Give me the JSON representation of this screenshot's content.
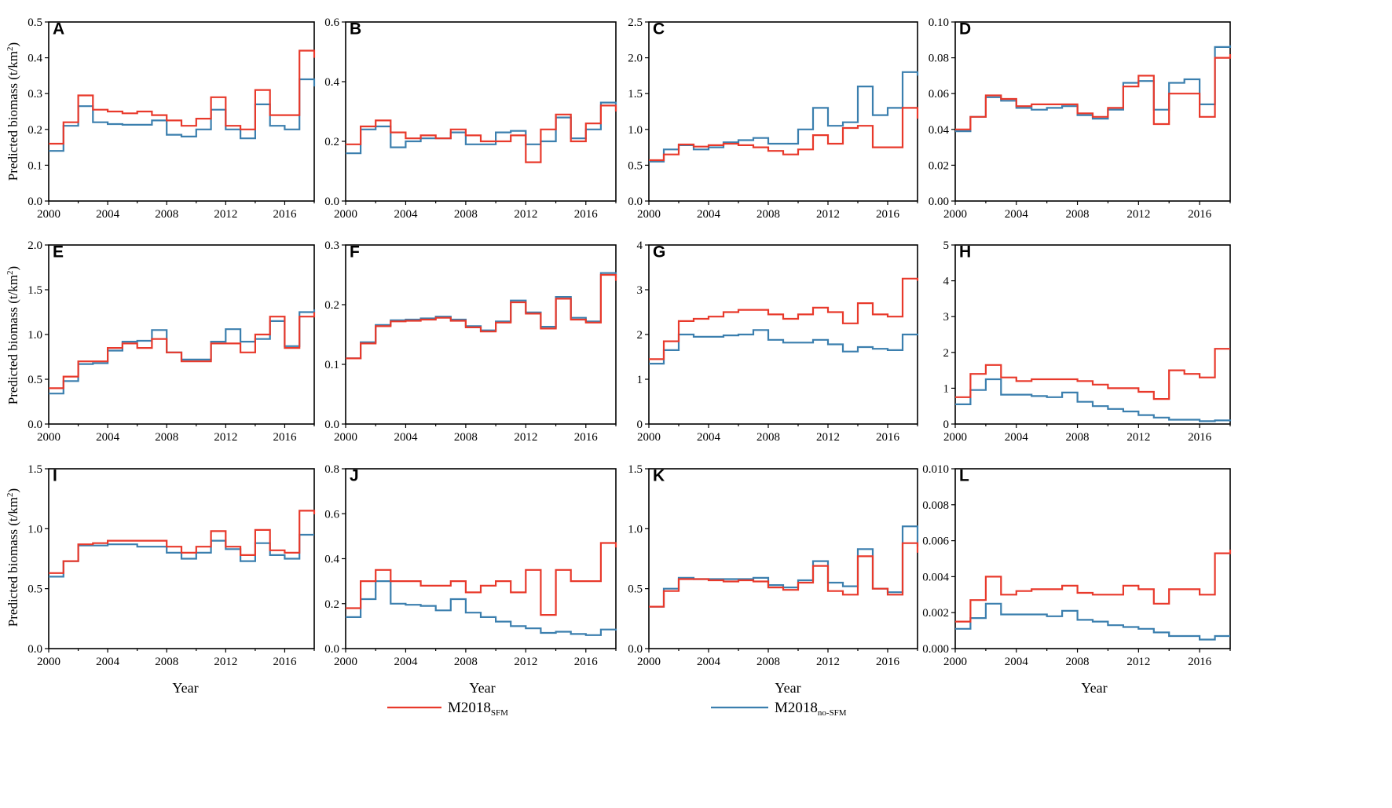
{
  "figure": {
    "ylabel": "Predicted biomass (t/km",
    "ylabel_sup": "2",
    "ylabel_close": ")",
    "xlabel": "Year",
    "legend": {
      "sfm_base": "M2018",
      "sfm_sub": "SFM",
      "nosfm_base": "M2018",
      "nosfm_sub": "no-SFM",
      "sfm_color": "#e8392b",
      "nosfm_color": "#3b7fae"
    }
  },
  "chart_data": [
    {
      "label": "A",
      "type": "line",
      "x": [
        2000,
        2001,
        2002,
        2003,
        2004,
        2005,
        2006,
        2007,
        2008,
        2009,
        2010,
        2011,
        2012,
        2013,
        2014,
        2015,
        2016,
        2017,
        2018
      ],
      "ylim": [
        0,
        0.5
      ],
      "yticks": [
        "0.0",
        "0.1",
        "0.2",
        "0.3",
        "0.4",
        "0.5"
      ],
      "xticks": [
        "2000",
        "2004",
        "2008",
        "2012",
        "2016"
      ],
      "series": [
        {
          "name": "M2018 SFM",
          "values": [
            0.16,
            0.22,
            0.295,
            0.255,
            0.25,
            0.245,
            0.25,
            0.24,
            0.225,
            0.21,
            0.23,
            0.29,
            0.21,
            0.2,
            0.31,
            0.24,
            0.24,
            0.42,
            0.4
          ]
        },
        {
          "name": "M2018 no-SFM",
          "values": [
            0.14,
            0.21,
            0.265,
            0.22,
            0.215,
            0.213,
            0.213,
            0.225,
            0.185,
            0.18,
            0.2,
            0.255,
            0.2,
            0.175,
            0.27,
            0.21,
            0.2,
            0.34,
            0.32
          ]
        }
      ]
    },
    {
      "label": "B",
      "type": "line",
      "x": [
        2000,
        2001,
        2002,
        2003,
        2004,
        2005,
        2006,
        2007,
        2008,
        2009,
        2010,
        2011,
        2012,
        2013,
        2014,
        2015,
        2016,
        2017,
        2018
      ],
      "ylim": [
        0,
        0.6
      ],
      "yticks": [
        "0.0",
        "0.2",
        "0.4",
        "0.6"
      ],
      "xticks": [
        "2000",
        "2004",
        "2008",
        "2012",
        "2016"
      ],
      "series": [
        {
          "name": "M2018 SFM",
          "values": [
            0.19,
            0.25,
            0.27,
            0.23,
            0.21,
            0.22,
            0.21,
            0.24,
            0.22,
            0.2,
            0.2,
            0.22,
            0.13,
            0.24,
            0.29,
            0.2,
            0.26,
            0.32,
            0.3
          ]
        },
        {
          "name": "M2018 no-SFM",
          "values": [
            0.16,
            0.24,
            0.25,
            0.18,
            0.2,
            0.21,
            0.21,
            0.23,
            0.19,
            0.19,
            0.23,
            0.235,
            0.19,
            0.2,
            0.28,
            0.21,
            0.24,
            0.33,
            0.3
          ]
        }
      ]
    },
    {
      "label": "C",
      "type": "line",
      "x": [
        2000,
        2001,
        2002,
        2003,
        2004,
        2005,
        2006,
        2007,
        2008,
        2009,
        2010,
        2011,
        2012,
        2013,
        2014,
        2015,
        2016,
        2017,
        2018
      ],
      "ylim": [
        0,
        2.5
      ],
      "yticks": [
        "0.0",
        "0.5",
        "1.0",
        "1.5",
        "2.0",
        "2.5"
      ],
      "xticks": [
        "2000",
        "2004",
        "2008",
        "2012",
        "2016"
      ],
      "series": [
        {
          "name": "M2018 SFM",
          "values": [
            0.57,
            0.65,
            0.79,
            0.76,
            0.78,
            0.8,
            0.78,
            0.75,
            0.7,
            0.65,
            0.72,
            0.92,
            0.8,
            1.02,
            1.05,
            0.75,
            0.75,
            1.3,
            1.15
          ]
        },
        {
          "name": "M2018 no-SFM",
          "values": [
            0.55,
            0.72,
            0.78,
            0.72,
            0.75,
            0.82,
            0.85,
            0.88,
            0.8,
            0.8,
            1.0,
            1.3,
            1.05,
            1.1,
            1.6,
            1.2,
            1.3,
            1.8,
            1.75
          ]
        }
      ]
    },
    {
      "label": "D",
      "type": "line",
      "x": [
        2000,
        2001,
        2002,
        2003,
        2004,
        2005,
        2006,
        2007,
        2008,
        2009,
        2010,
        2011,
        2012,
        2013,
        2014,
        2015,
        2016,
        2017,
        2018
      ],
      "ylim": [
        0,
        0.1
      ],
      "yticks": [
        "0.00",
        "0.02",
        "0.04",
        "0.06",
        "0.08",
        "0.10"
      ],
      "xticks": [
        "2000",
        "2004",
        "2008",
        "2012",
        "2016"
      ],
      "series": [
        {
          "name": "M2018 SFM",
          "values": [
            0.04,
            0.047,
            0.059,
            0.057,
            0.053,
            0.054,
            0.054,
            0.054,
            0.049,
            0.047,
            0.052,
            0.064,
            0.07,
            0.043,
            0.06,
            0.06,
            0.047,
            0.08,
            0.082
          ]
        },
        {
          "name": "M2018 no-SFM",
          "values": [
            0.039,
            0.047,
            0.058,
            0.056,
            0.052,
            0.051,
            0.052,
            0.053,
            0.048,
            0.046,
            0.051,
            0.066,
            0.067,
            0.051,
            0.066,
            0.068,
            0.054,
            0.086,
            0.087
          ]
        }
      ]
    },
    {
      "label": "E",
      "type": "line",
      "x": [
        2000,
        2001,
        2002,
        2003,
        2004,
        2005,
        2006,
        2007,
        2008,
        2009,
        2010,
        2011,
        2012,
        2013,
        2014,
        2015,
        2016,
        2017,
        2018
      ],
      "ylim": [
        0,
        2.0
      ],
      "yticks": [
        "0.0",
        "0.5",
        "1.0",
        "1.5",
        "2.0"
      ],
      "xticks": [
        "2000",
        "2004",
        "2008",
        "2012",
        "2016"
      ],
      "series": [
        {
          "name": "M2018 SFM",
          "values": [
            0.4,
            0.53,
            0.7,
            0.7,
            0.85,
            0.9,
            0.85,
            0.95,
            0.8,
            0.7,
            0.7,
            0.9,
            0.9,
            0.8,
            1.0,
            1.2,
            0.85,
            1.2,
            1.25
          ]
        },
        {
          "name": "M2018 no-SFM",
          "values": [
            0.34,
            0.48,
            0.67,
            0.68,
            0.82,
            0.92,
            0.93,
            1.05,
            0.8,
            0.72,
            0.72,
            0.92,
            1.06,
            0.92,
            0.95,
            1.15,
            0.87,
            1.25,
            1.28
          ]
        }
      ]
    },
    {
      "label": "F",
      "type": "line",
      "x": [
        2000,
        2001,
        2002,
        2003,
        2004,
        2005,
        2006,
        2007,
        2008,
        2009,
        2010,
        2011,
        2012,
        2013,
        2014,
        2015,
        2016,
        2017,
        2018
      ],
      "ylim": [
        0,
        0.3
      ],
      "yticks": [
        "0.0",
        "0.1",
        "0.2",
        "0.3"
      ],
      "xticks": [
        "2000",
        "2004",
        "2008",
        "2012",
        "2016"
      ],
      "series": [
        {
          "name": "M2018 SFM",
          "values": [
            0.11,
            0.135,
            0.164,
            0.172,
            0.173,
            0.175,
            0.178,
            0.173,
            0.162,
            0.155,
            0.17,
            0.204,
            0.185,
            0.16,
            0.21,
            0.175,
            0.17,
            0.25,
            0.24
          ]
        },
        {
          "name": "M2018 no-SFM",
          "values": [
            0.11,
            0.137,
            0.166,
            0.174,
            0.175,
            0.177,
            0.18,
            0.175,
            0.164,
            0.157,
            0.172,
            0.207,
            0.187,
            0.163,
            0.213,
            0.178,
            0.172,
            0.253,
            0.245
          ]
        }
      ]
    },
    {
      "label": "G",
      "type": "line",
      "x": [
        2000,
        2001,
        2002,
        2003,
        2004,
        2005,
        2006,
        2007,
        2008,
        2009,
        2010,
        2011,
        2012,
        2013,
        2014,
        2015,
        2016,
        2017,
        2018
      ],
      "ylim": [
        0,
        4
      ],
      "yticks": [
        "0",
        "1",
        "2",
        "3",
        "4"
      ],
      "xticks": [
        "2000",
        "2004",
        "2008",
        "2012",
        "2016"
      ],
      "series": [
        {
          "name": "M2018 SFM",
          "values": [
            1.45,
            1.85,
            2.3,
            2.35,
            2.4,
            2.5,
            2.55,
            2.55,
            2.45,
            2.35,
            2.45,
            2.6,
            2.5,
            2.25,
            2.7,
            2.45,
            2.4,
            3.25,
            3.2
          ]
        },
        {
          "name": "M2018 no-SFM",
          "values": [
            1.35,
            1.65,
            2.0,
            1.95,
            1.95,
            1.98,
            2.0,
            2.1,
            1.88,
            1.82,
            1.82,
            1.88,
            1.78,
            1.62,
            1.72,
            1.68,
            1.65,
            2.0,
            1.98
          ]
        }
      ]
    },
    {
      "label": "H",
      "type": "line",
      "x": [
        2000,
        2001,
        2002,
        2003,
        2004,
        2005,
        2006,
        2007,
        2008,
        2009,
        2010,
        2011,
        2012,
        2013,
        2014,
        2015,
        2016,
        2017,
        2018
      ],
      "ylim": [
        0,
        5
      ],
      "yticks": [
        "0",
        "1",
        "2",
        "3",
        "4",
        "5"
      ],
      "xticks": [
        "2000",
        "2004",
        "2008",
        "2012",
        "2016"
      ],
      "series": [
        {
          "name": "M2018 SFM",
          "values": [
            0.75,
            1.4,
            1.65,
            1.3,
            1.2,
            1.25,
            1.25,
            1.25,
            1.2,
            1.1,
            1.0,
            1.0,
            0.9,
            0.7,
            1.5,
            1.4,
            1.3,
            2.1,
            2.1
          ]
        },
        {
          "name": "M2018 no-SFM",
          "values": [
            0.55,
            0.95,
            1.25,
            0.82,
            0.82,
            0.78,
            0.75,
            0.88,
            0.62,
            0.5,
            0.42,
            0.35,
            0.25,
            0.18,
            0.12,
            0.12,
            0.08,
            0.1,
            0.08
          ]
        }
      ]
    },
    {
      "label": "I",
      "type": "line",
      "x": [
        2000,
        2001,
        2002,
        2003,
        2004,
        2005,
        2006,
        2007,
        2008,
        2009,
        2010,
        2011,
        2012,
        2013,
        2014,
        2015,
        2016,
        2017,
        2018
      ],
      "ylim": [
        0,
        1.5
      ],
      "yticks": [
        "0.0",
        "0.5",
        "1.0",
        "1.5"
      ],
      "xticks": [
        "2000",
        "2004",
        "2008",
        "2012",
        "2016"
      ],
      "series": [
        {
          "name": "M2018 SFM",
          "values": [
            0.63,
            0.73,
            0.87,
            0.88,
            0.9,
            0.9,
            0.9,
            0.9,
            0.85,
            0.8,
            0.85,
            0.98,
            0.85,
            0.78,
            0.99,
            0.82,
            0.8,
            1.15,
            1.12
          ]
        },
        {
          "name": "M2018 no-SFM",
          "values": [
            0.6,
            0.73,
            0.86,
            0.86,
            0.87,
            0.87,
            0.85,
            0.85,
            0.8,
            0.75,
            0.8,
            0.9,
            0.83,
            0.73,
            0.88,
            0.78,
            0.75,
            0.95,
            0.95
          ]
        }
      ]
    },
    {
      "label": "J",
      "type": "line",
      "x": [
        2000,
        2001,
        2002,
        2003,
        2004,
        2005,
        2006,
        2007,
        2008,
        2009,
        2010,
        2011,
        2012,
        2013,
        2014,
        2015,
        2016,
        2017,
        2018
      ],
      "ylim": [
        0,
        0.8
      ],
      "yticks": [
        "0.0",
        "0.2",
        "0.4",
        "0.6",
        "0.8"
      ],
      "xticks": [
        "2000",
        "2004",
        "2008",
        "2012",
        "2016"
      ],
      "series": [
        {
          "name": "M2018 SFM",
          "values": [
            0.18,
            0.3,
            0.35,
            0.3,
            0.3,
            0.28,
            0.28,
            0.3,
            0.25,
            0.28,
            0.3,
            0.25,
            0.35,
            0.15,
            0.35,
            0.3,
            0.3,
            0.47,
            0.45
          ]
        },
        {
          "name": "M2018 no-SFM",
          "values": [
            0.14,
            0.22,
            0.3,
            0.2,
            0.195,
            0.19,
            0.17,
            0.22,
            0.16,
            0.14,
            0.12,
            0.1,
            0.09,
            0.07,
            0.075,
            0.065,
            0.06,
            0.085,
            0.08
          ]
        }
      ]
    },
    {
      "label": "K",
      "type": "line",
      "x": [
        2000,
        2001,
        2002,
        2003,
        2004,
        2005,
        2006,
        2007,
        2008,
        2009,
        2010,
        2011,
        2012,
        2013,
        2014,
        2015,
        2016,
        2017,
        2018
      ],
      "ylim": [
        0,
        1.5
      ],
      "yticks": [
        "0.0",
        "0.5",
        "1.0",
        "1.5"
      ],
      "xticks": [
        "2000",
        "2004",
        "2008",
        "2012",
        "2016"
      ],
      "series": [
        {
          "name": "M2018 SFM",
          "values": [
            0.35,
            0.48,
            0.58,
            0.58,
            0.57,
            0.56,
            0.57,
            0.56,
            0.51,
            0.49,
            0.55,
            0.69,
            0.48,
            0.45,
            0.77,
            0.5,
            0.45,
            0.88,
            0.8
          ]
        },
        {
          "name": "M2018 no-SFM",
          "values": [
            0.35,
            0.5,
            0.59,
            0.58,
            0.58,
            0.58,
            0.58,
            0.59,
            0.53,
            0.51,
            0.57,
            0.73,
            0.55,
            0.52,
            0.83,
            0.5,
            0.47,
            1.02,
            0.85
          ]
        }
      ]
    },
    {
      "label": "L",
      "type": "line",
      "x": [
        2000,
        2001,
        2002,
        2003,
        2004,
        2005,
        2006,
        2007,
        2008,
        2009,
        2010,
        2011,
        2012,
        2013,
        2014,
        2015,
        2016,
        2017,
        2018
      ],
      "ylim": [
        0,
        0.01
      ],
      "yticks": [
        "0.000",
        "0.002",
        "0.004",
        "0.006",
        "0.008",
        "0.010"
      ],
      "xticks": [
        "2000",
        "2004",
        "2008",
        "2012",
        "2016"
      ],
      "series": [
        {
          "name": "M2018 SFM",
          "values": [
            0.0015,
            0.0027,
            0.004,
            0.003,
            0.0032,
            0.0033,
            0.0033,
            0.0035,
            0.0031,
            0.003,
            0.003,
            0.0035,
            0.0033,
            0.0025,
            0.0033,
            0.0033,
            0.003,
            0.0053,
            0.0055
          ]
        },
        {
          "name": "M2018 no-SFM",
          "values": [
            0.0011,
            0.0017,
            0.0025,
            0.0019,
            0.0019,
            0.0019,
            0.0018,
            0.0021,
            0.0016,
            0.0015,
            0.0013,
            0.0012,
            0.0011,
            0.0009,
            0.0007,
            0.0007,
            0.0005,
            0.0007,
            0.0007
          ]
        }
      ]
    }
  ]
}
